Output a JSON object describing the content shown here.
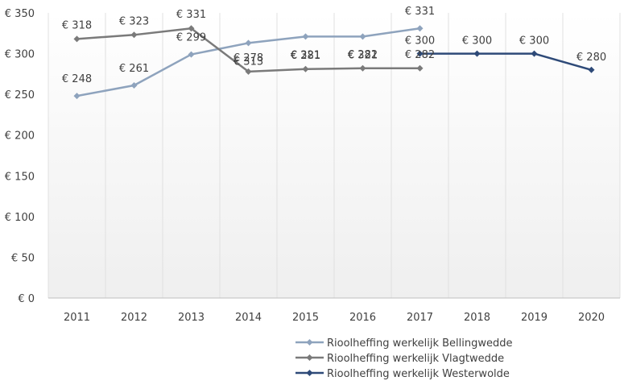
{
  "chart_data": {
    "type": "line",
    "title": "",
    "xlabel": "",
    "ylabel": "",
    "ylim": [
      0,
      350
    ],
    "ytick_step": 50,
    "ytick_labels": [
      "€ 0",
      "€ 50",
      "€ 100",
      "€ 150",
      "€ 200",
      "€ 250",
      "€ 300",
      "€ 350"
    ],
    "categories": [
      "2011",
      "2012",
      "2013",
      "2014",
      "2015",
      "2016",
      "2017",
      "2018",
      "2019",
      "2020"
    ],
    "grid": "vertical",
    "legend_position": "bottom-right",
    "series": [
      {
        "name": "Rioolheffing werkelijk Bellingwedde",
        "color": "#8ea3bd",
        "values": [
          248,
          261,
          299,
          313,
          321,
          321,
          331,
          null,
          null,
          null
        ],
        "labels": [
          "€ 248",
          "€ 261",
          "€ 299",
          "€ 313",
          "€ 321",
          "€ 321",
          "€ 331",
          "",
          "",
          ""
        ]
      },
      {
        "name": "Rioolheffing werkelijk Vlagtwedde",
        "color": "#7a7a7a",
        "values": [
          318,
          323,
          331,
          278,
          281,
          282,
          282,
          null,
          null,
          null
        ],
        "labels": [
          "€ 318",
          "€ 323",
          "€ 331",
          "€ 278",
          "€ 281",
          "€ 282",
          "€ 282",
          "",
          "",
          ""
        ]
      },
      {
        "name": "Rioolheffing werkelijk Westerwolde",
        "color": "#2e4a78",
        "values": [
          null,
          null,
          null,
          null,
          null,
          null,
          300,
          300,
          300,
          280
        ],
        "labels": [
          "",
          "",
          "",
          "",
          "",
          "",
          "€ 300",
          "€ 300",
          "€ 300",
          "€ 280"
        ]
      }
    ]
  }
}
